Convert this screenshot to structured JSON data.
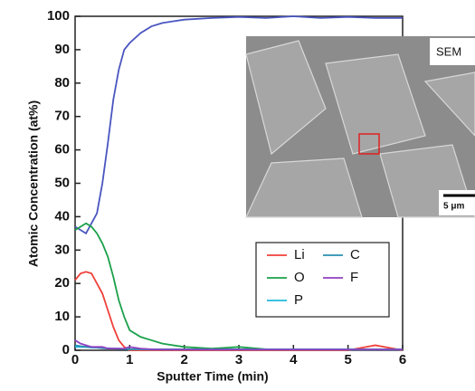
{
  "chart_data": {
    "type": "line",
    "xlabel": "Sputter Time (min)",
    "ylabel": "Atomic Concentration (at%)",
    "x": [
      0,
      0.1,
      0.2,
      0.3,
      0.4,
      0.5,
      0.6,
      0.7,
      0.8,
      0.9,
      1.0,
      1.2,
      1.4,
      1.6,
      1.8,
      2.0,
      2.5,
      3.0,
      3.5,
      4.0,
      4.5,
      5.0,
      5.5,
      6.0
    ],
    "series": [
      {
        "color": "#4a55c0",
        "values": [
          37,
          36,
          35,
          38,
          41,
          50,
          62,
          75,
          84,
          90,
          92,
          95,
          97,
          98,
          98.5,
          99,
          99.5,
          99.8,
          99.5,
          100,
          99.5,
          99.8,
          99.5,
          99.5
        ]
      },
      {
        "name": "Li",
        "color": "#f0403a",
        "values": [
          21,
          23,
          23.5,
          23,
          20,
          17,
          12,
          7,
          3,
          1,
          0,
          0,
          0,
          0,
          0,
          0,
          0,
          0,
          0,
          0,
          0,
          0,
          1.5,
          0
        ]
      },
      {
        "name": "O",
        "color": "#1aa04a",
        "values": [
          36,
          37,
          38,
          37,
          35,
          32,
          28,
          22,
          15,
          10,
          6,
          4,
          3,
          2,
          1.5,
          1,
          0.5,
          1,
          0.3,
          0.3,
          0.3,
          0.2,
          0.2,
          0.2
        ]
      },
      {
        "name": "P",
        "color": "#20b8e0",
        "values": [
          1,
          1,
          1,
          0.8,
          0.8,
          0.7,
          0.6,
          0.5,
          0.5,
          0.4,
          0.3,
          0.3,
          0.2,
          0.2,
          0.2,
          0.2,
          0.2,
          0.2,
          0.2,
          0.2,
          0.2,
          0.2,
          0.2,
          0.2
        ]
      },
      {
        "name": "C",
        "color": "#2a8fb0",
        "values": [
          1.5,
          1.2,
          1,
          1,
          0.8,
          0.6,
          0.5,
          0.5,
          0.4,
          0.4,
          0.3,
          0.3,
          0.3,
          0.3,
          0.3,
          0.3,
          0.3,
          0.3,
          0.3,
          0.3,
          0.3,
          0.3,
          0.3,
          0.3
        ]
      },
      {
        "name": "F",
        "color": "#9040c0",
        "values": [
          3,
          2,
          1.5,
          1,
          1,
          1,
          0.5,
          0.5,
          0.5,
          0.5,
          1,
          0.5,
          0.3,
          0.2,
          0.2,
          0.2,
          0.2,
          0.2,
          0.2,
          0.2,
          0.2,
          0.2,
          0.2,
          0.2
        ]
      }
    ],
    "xlim": [
      0,
      6
    ],
    "xticks": [
      0,
      1,
      2,
      3,
      4,
      5,
      6
    ],
    "ylim": [
      0,
      100
    ],
    "yticks": [
      0,
      10,
      20,
      30,
      40,
      50,
      60,
      70,
      80,
      90,
      100
    ],
    "annotations": [
      "SEM",
      "5 μm"
    ]
  }
}
